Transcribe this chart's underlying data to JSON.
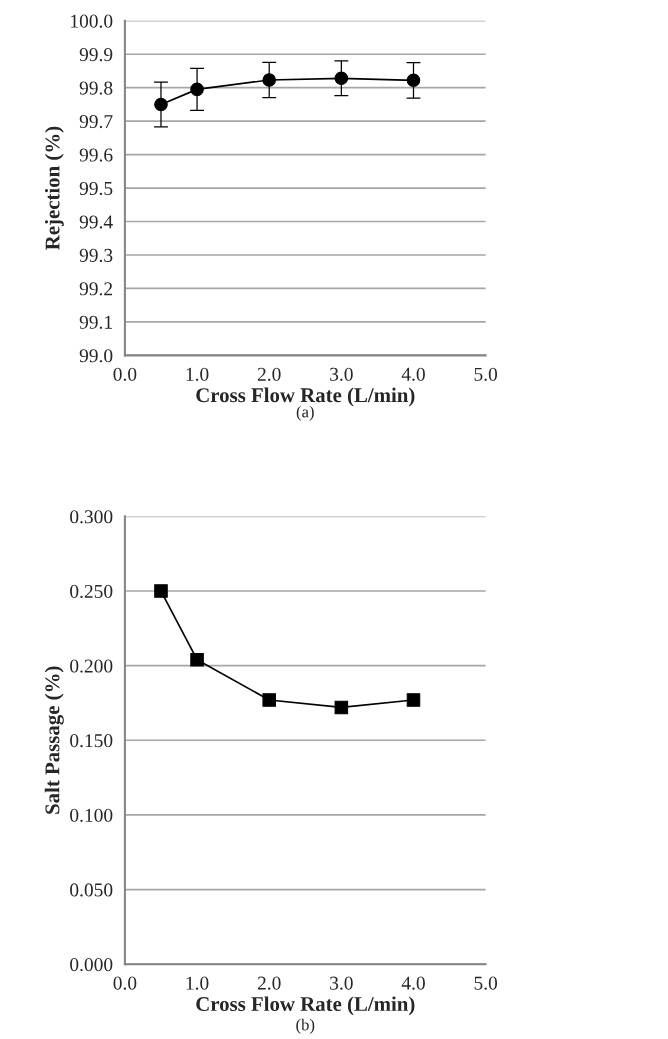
{
  "chart_data": [
    {
      "type": "line",
      "xlabel": "Cross Flow Rate (L/min)",
      "ylabel": "Rejection (%)",
      "annotations": [
        "(a)"
      ],
      "x": [
        0.5,
        1.0,
        2.0,
        3.0,
        4.0
      ],
      "series": [
        {
          "color": "#000000",
          "values": [
            99.75,
            99.795,
            99.823,
            99.828,
            99.822
          ],
          "errors": [
            0.067,
            0.063,
            0.053,
            0.052,
            0.053
          ]
        }
      ],
      "xlim": [
        0.0,
        5.0
      ],
      "xticks": [
        {
          "value": 0,
          "label": "0.0"
        },
        {
          "value": 1,
          "label": "1.0"
        },
        {
          "value": 2,
          "label": "2.0"
        },
        {
          "value": 3,
          "label": "3.0"
        },
        {
          "value": 4,
          "label": "4.0"
        },
        {
          "value": 5,
          "label": "5.0"
        }
      ],
      "ylim": [
        99.0,
        100.0
      ],
      "yticks": [
        {
          "value": 99.0,
          "label": "99.0"
        },
        {
          "value": 99.1,
          "label": "99.1"
        },
        {
          "value": 99.2,
          "label": "99.2"
        },
        {
          "value": 99.3,
          "label": "99.3"
        },
        {
          "value": 99.4,
          "label": "99.4"
        },
        {
          "value": 99.5,
          "label": "99.5"
        },
        {
          "value": 99.6,
          "label": "99.6"
        },
        {
          "value": 99.7,
          "label": "99.7"
        },
        {
          "value": 99.8,
          "label": "99.8"
        },
        {
          "value": 99.9,
          "label": "99.9"
        },
        {
          "value": 100.0,
          "label": "100.0"
        }
      ],
      "grid": "y",
      "marker": "circle",
      "line_style": "solid"
    },
    {
      "type": "line",
      "xlabel": "Cross Flow Rate (L/min)",
      "ylabel": "Salt Passage (%)",
      "annotations": [
        "(b)"
      ],
      "x": [
        0.5,
        1.0,
        2.0,
        3.0,
        4.0
      ],
      "series": [
        {
          "color": "#000000",
          "values": [
            0.25,
            0.204,
            0.177,
            0.172,
            0.177
          ]
        }
      ],
      "xlim": [
        0.0,
        5.0
      ],
      "xticks": [
        {
          "value": 0,
          "label": "0.0"
        },
        {
          "value": 1,
          "label": "1.0"
        },
        {
          "value": 2,
          "label": "2.0"
        },
        {
          "value": 3,
          "label": "3.0"
        },
        {
          "value": 4,
          "label": "4.0"
        },
        {
          "value": 5,
          "label": "5.0"
        }
      ],
      "ylim": [
        0.0,
        0.3
      ],
      "yticks": [
        {
          "value": 0.0,
          "label": "0.000"
        },
        {
          "value": 0.05,
          "label": "0.050"
        },
        {
          "value": 0.1,
          "label": "0.100"
        },
        {
          "value": 0.15,
          "label": "0.150"
        },
        {
          "value": 0.2,
          "label": "0.200"
        },
        {
          "value": 0.25,
          "label": "0.250"
        },
        {
          "value": 0.3,
          "label": "0.300"
        }
      ],
      "grid": "y",
      "marker": "square",
      "line_style": "solid"
    }
  ]
}
